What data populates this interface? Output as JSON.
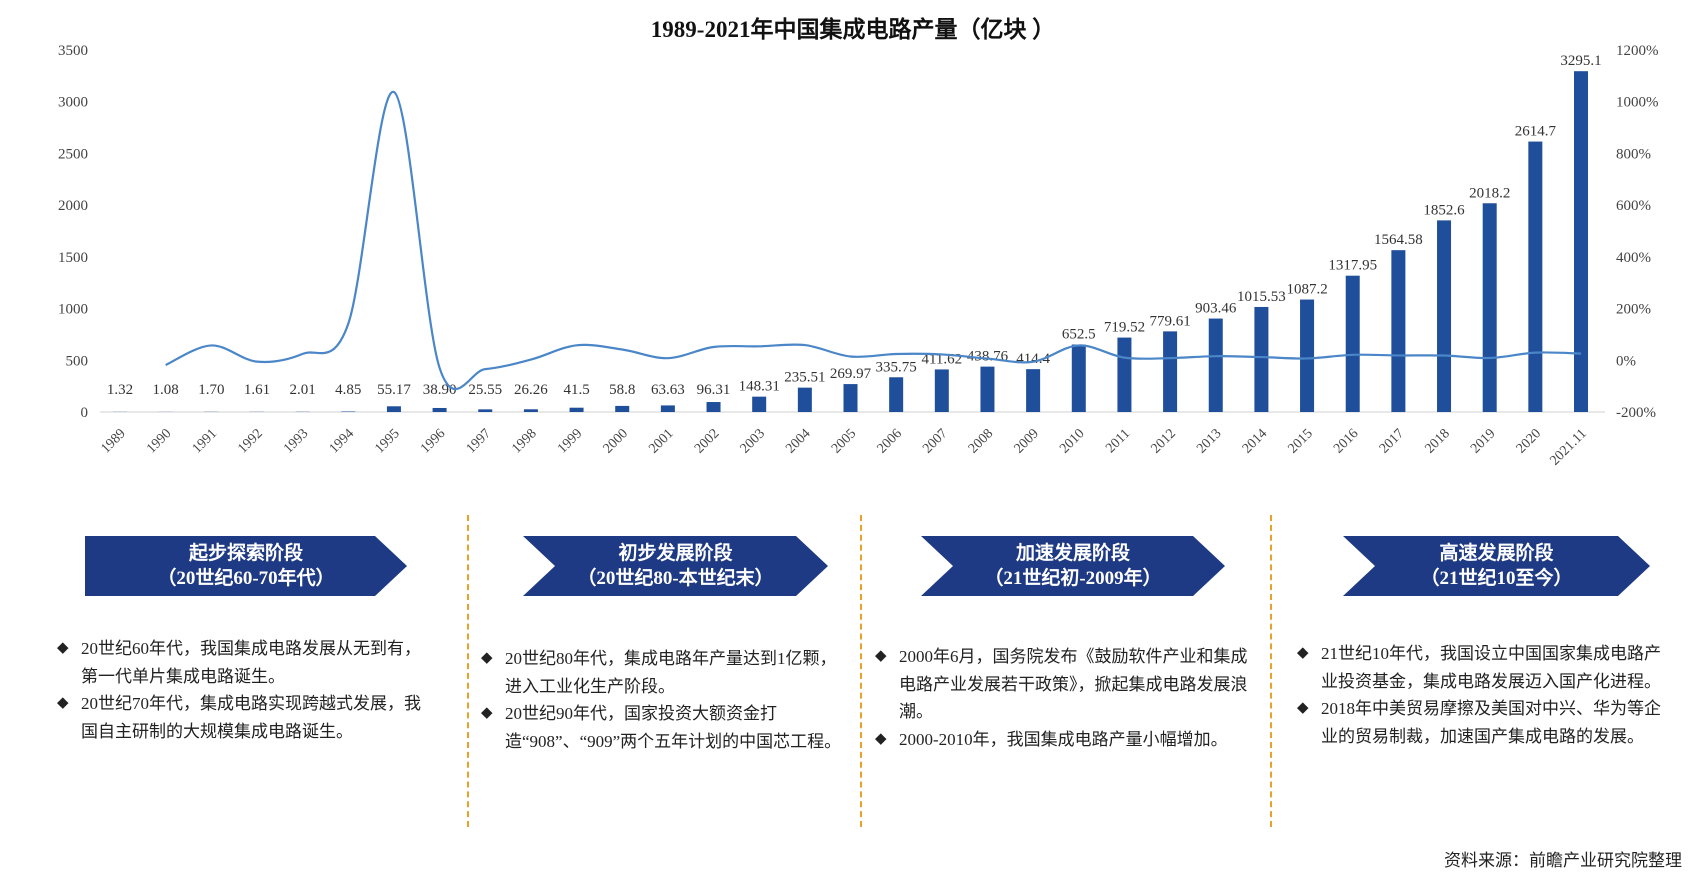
{
  "chart_data": {
    "type": "bar+line",
    "title": "1989-2021年中国集成电路产量（亿块 ）",
    "categories": [
      "1989",
      "1990",
      "1991",
      "1992",
      "1993",
      "1994",
      "1995",
      "1996",
      "1997",
      "1998",
      "1999",
      "2000",
      "2001",
      "2002",
      "2003",
      "2004",
      "2005",
      "2006",
      "2007",
      "2008",
      "2009",
      "2010",
      "2011",
      "2012",
      "2013",
      "2014",
      "2015",
      "2016",
      "2017",
      "2018",
      "2019",
      "2020",
      "2021.11"
    ],
    "series": [
      {
        "type": "bar",
        "axis": "left",
        "color": "#1f4e9a",
        "values": [
          1.32,
          1.08,
          1.7,
          1.61,
          2.01,
          4.85,
          55.17,
          38.9,
          25.55,
          26.26,
          41.5,
          58.8,
          63.63,
          96.31,
          148.31,
          235.51,
          269.97,
          335.75,
          411.62,
          438.76,
          414.4,
          652.5,
          719.52,
          779.61,
          903.46,
          1015.53,
          1087.2,
          1317.95,
          1564.58,
          1852.6,
          2018.2,
          2614.7,
          3295.1
        ],
        "labels": [
          "1.32",
          "1.08",
          "1.70",
          "1.61",
          "2.01",
          "4.85",
          "55.17",
          "38.90",
          "25.55",
          "26.26",
          "41.5",
          "58.8",
          "63.63",
          "96.31",
          "148.31",
          "235.51",
          "269.97",
          "335.75",
          "411.62",
          "438.76",
          "414.4",
          "652.5",
          "719.52",
          "779.61",
          "903.46",
          "1015.53",
          "1087.2",
          "1317.95",
          "1564.58",
          "1852.6",
          "2018.2",
          "2614.7",
          "3295.1"
        ]
      },
      {
        "type": "line",
        "axis": "right",
        "color": "#4a86c8",
        "unit": "%",
        "values": [
          null,
          -18.2,
          57.4,
          -5.3,
          24.8,
          141.3,
          1037.5,
          -29.5,
          -34.3,
          2.8,
          58.0,
          41.7,
          8.2,
          51.4,
          54.0,
          58.8,
          14.6,
          24.4,
          22.6,
          6.6,
          -5.6,
          57.5,
          10.3,
          8.4,
          15.9,
          12.4,
          7.1,
          21.2,
          18.7,
          18.4,
          8.9,
          29.6,
          26.0
        ]
      }
    ],
    "y_left": {
      "range": [
        0,
        3500
      ],
      "ticks": [
        "0",
        "500",
        "1000",
        "1500",
        "2000",
        "2500",
        "3000",
        "3500"
      ]
    },
    "y_right": {
      "range": [
        -200,
        1200
      ],
      "ticks": [
        "-200%",
        "0%",
        "200%",
        "400%",
        "600%",
        "800%",
        "1000%",
        "1200%"
      ]
    },
    "grid": false,
    "legend": "none"
  },
  "stages": [
    {
      "title": "起步探索阶段",
      "period": "（20世纪60-70年代）",
      "bullets": [
        "20世纪60年代，我国集成电路发展从无到有，第一代单片集成电路诞生。",
        "20世纪70年代，集成电路实现跨越式发展，我国自主研制的大规模集成电路诞生。"
      ]
    },
    {
      "title": "初步发展阶段",
      "period": "（20世纪80-本世纪末）",
      "bullets": [
        "20世纪80年代，集成电路年产量达到1亿颗，进入工业化生产阶段。",
        "20世纪90年代，国家投资大额资金打造“908”、“909”两个五年计划的中国芯工程。"
      ]
    },
    {
      "title": "加速发展阶段",
      "period": "（21世纪初-2009年）",
      "bullets": [
        "2000年6月，国务院发布《鼓励软件产业和集成电路产业发展若干政策》，掀起集成电路发展浪潮。",
        "2000-2010年，我国集成电路产量小幅增加。"
      ]
    },
    {
      "title": "高速发展阶段",
      "period": "（21世纪10至今）",
      "bullets": [
        "21世纪10年代，我国设立中国国家集成电路产业投资基金，集成电路发展迈入国产化进程。",
        "2018年中美贸易摩擦及美国对中兴、华为等企业的贸易制裁，加速国产集成电路的发展。"
      ]
    }
  ],
  "bullet_symbol": "◆",
  "source": "资料来源：前瞻产业研究院整理",
  "colors": {
    "banner": "#1f3a84",
    "divider": "#e8a22a",
    "bar": "#1f4e9a",
    "line": "#4a86c8"
  }
}
